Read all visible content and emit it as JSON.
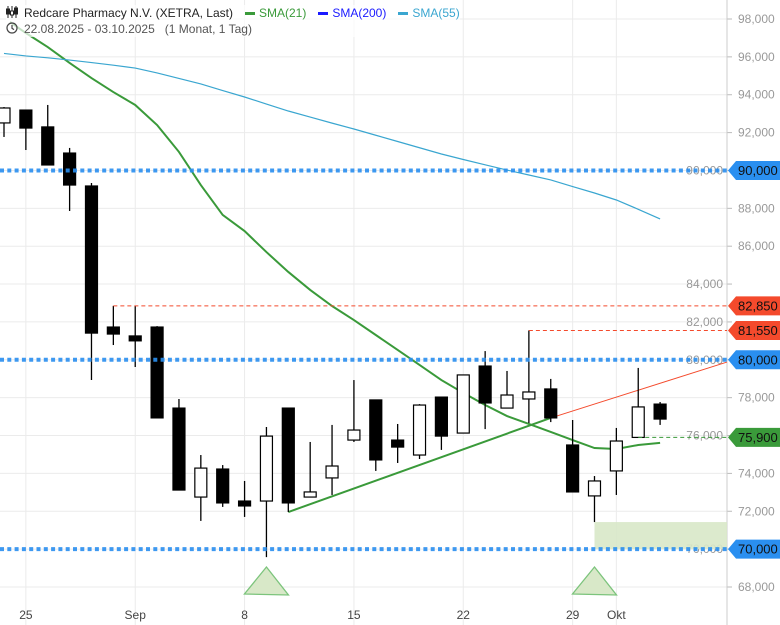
{
  "header": {
    "title": "Redcare Pharmacy N.V. (XETRA, Last)",
    "date_range": "22.08.2025 - 03.10.2025",
    "period": "(1 Monat, 1 Tag)",
    "icons": {
      "chart": "candlestick-icon",
      "time": "clock-icon"
    }
  },
  "chart_data": {
    "type": "candlestick",
    "title": "Redcare Pharmacy N.V. (XETRA, Last)",
    "ylim": [
      67000,
      99000
    ],
    "y_ticks": [
      68000,
      70000,
      72000,
      74000,
      76000,
      78000,
      80000,
      82000,
      84000,
      86000,
      88000,
      90000,
      92000,
      94000,
      96000,
      98000
    ],
    "y_tick_labels": [
      "68,000",
      "70,000",
      "72,000",
      "74,000",
      "76,000",
      "78,000",
      "80,000",
      "82,000",
      "84,000",
      "86,000",
      "88,000",
      "90,000",
      "92,000",
      "94,000",
      "96,000",
      "98,000"
    ],
    "x_labels": [
      {
        "label": "25",
        "date": "2025-08-25"
      },
      {
        "label": "Sep",
        "date": "2025-09-01"
      },
      {
        "label": "8",
        "date": "2025-09-08"
      },
      {
        "label": "15",
        "date": "2025-09-15"
      },
      {
        "label": "22",
        "date": "2025-09-22"
      },
      {
        "label": "29",
        "date": "2025-09-29"
      },
      {
        "label": "Okt",
        "date": "2025-10-01"
      }
    ],
    "grid": true,
    "candles": [
      {
        "date": "2025-08-22",
        "o": 92510,
        "h": 93350,
        "l": 91770,
        "c": 93300
      },
      {
        "date": "2025-08-25",
        "o": 93190,
        "h": 93190,
        "l": 91080,
        "c": 92240
      },
      {
        "date": "2025-08-26",
        "o": 92300,
        "h": 93460,
        "l": 90290,
        "c": 90290
      },
      {
        "date": "2025-08-27",
        "o": 90920,
        "h": 91190,
        "l": 87860,
        "c": 89230
      },
      {
        "date": "2025-08-28",
        "o": 89180,
        "h": 89340,
        "l": 78930,
        "c": 81410
      },
      {
        "date": "2025-08-29",
        "o": 81730,
        "h": 82850,
        "l": 80780,
        "c": 81360
      },
      {
        "date": "2025-09-01",
        "o": 81260,
        "h": 82850,
        "l": 79620,
        "c": 81000
      },
      {
        "date": "2025-09-02",
        "o": 81730,
        "h": 81780,
        "l": 76930,
        "c": 76930
      },
      {
        "date": "2025-09-03",
        "o": 77450,
        "h": 77930,
        "l": 73120,
        "c": 73120
      },
      {
        "date": "2025-09-04",
        "o": 72750,
        "h": 74970,
        "l": 71490,
        "c": 74280
      },
      {
        "date": "2025-09-05",
        "o": 74230,
        "h": 74440,
        "l": 72230,
        "c": 72440
      },
      {
        "date": "2025-09-08",
        "o": 72540,
        "h": 73600,
        "l": 71700,
        "c": 72280
      },
      {
        "date": "2025-09-09",
        "o": 72540,
        "h": 76450,
        "l": 69580,
        "c": 75970
      },
      {
        "date": "2025-09-10",
        "o": 77450,
        "h": 77450,
        "l": 71960,
        "c": 72440
      },
      {
        "date": "2025-09-11",
        "o": 72750,
        "h": 75660,
        "l": 72750,
        "c": 73020
      },
      {
        "date": "2025-09-12",
        "o": 73760,
        "h": 76560,
        "l": 72860,
        "c": 74390
      },
      {
        "date": "2025-09-15",
        "o": 75760,
        "h": 78930,
        "l": 75660,
        "c": 76290
      },
      {
        "date": "2025-09-16",
        "o": 77880,
        "h": 77880,
        "l": 74130,
        "c": 74710
      },
      {
        "date": "2025-09-17",
        "o": 75760,
        "h": 76610,
        "l": 74550,
        "c": 75390
      },
      {
        "date": "2025-09-18",
        "o": 74970,
        "h": 77660,
        "l": 74760,
        "c": 77610
      },
      {
        "date": "2025-09-19",
        "o": 78030,
        "h": 78030,
        "l": 75240,
        "c": 75970
      },
      {
        "date": "2025-09-22",
        "o": 76130,
        "h": 79200,
        "l": 76130,
        "c": 79200
      },
      {
        "date": "2025-09-23",
        "o": 79670,
        "h": 80460,
        "l": 76340,
        "c": 77720
      },
      {
        "date": "2025-09-24",
        "o": 77450,
        "h": 79410,
        "l": 77450,
        "c": 78140
      },
      {
        "date": "2025-09-25",
        "o": 77930,
        "h": 81550,
        "l": 76660,
        "c": 78300
      },
      {
        "date": "2025-09-26",
        "o": 78460,
        "h": 78990,
        "l": 76710,
        "c": 76930
      },
      {
        "date": "2025-09-29",
        "o": 75500,
        "h": 76820,
        "l": 73020,
        "c": 73020
      },
      {
        "date": "2025-09-30",
        "o": 72810,
        "h": 73860,
        "l": 71430,
        "c": 73600
      },
      {
        "date": "2025-10-01",
        "o": 74130,
        "h": 76400,
        "l": 72860,
        "c": 75710
      },
      {
        "date": "2025-10-02",
        "o": 75900,
        "h": 79570,
        "l": 75900,
        "c": 77510
      },
      {
        "date": "2025-10-03",
        "o": 77660,
        "h": 77770,
        "l": 76560,
        "c": 76870
      }
    ],
    "series": [
      {
        "name": "SMA(21)",
        "color": "#3a9a3a",
        "values": [
          null,
          97260,
          96520,
          95680,
          94880,
          94140,
          93460,
          92400,
          90980,
          89230,
          87650,
          86800,
          85690,
          84640,
          83690,
          82840,
          82100,
          81310,
          80520,
          79730,
          78930,
          78250,
          77610,
          77030,
          76610,
          76190,
          75760,
          75340,
          75290,
          75500,
          75610
        ]
      },
      {
        "name": "SMA(200)",
        "color": "#1a1aff",
        "values": []
      },
      {
        "name": "SMA(55)",
        "color": "#3aa6d0",
        "values": [
          96180,
          96050,
          95950,
          95830,
          95700,
          95560,
          95410,
          95150,
          94860,
          94570,
          94220,
          93880,
          93510,
          93140,
          92820,
          92500,
          92190,
          91860,
          91530,
          91200,
          90870,
          90580,
          90300,
          90020,
          89760,
          89500,
          89150,
          88810,
          88440,
          87950,
          87440
        ]
      }
    ],
    "horizontal_lines": [
      {
        "value": 90000,
        "label": "90,000",
        "style": "dotted",
        "color": "#2a8ff0"
      },
      {
        "value": 80000,
        "label": "80,000",
        "style": "dotted",
        "color": "#2a8ff0"
      },
      {
        "value": 70000,
        "label": "70,000",
        "style": "dotted",
        "color": "#2a8ff0"
      },
      {
        "value": 82850,
        "label": "82,850",
        "style": "dashed",
        "color": "#f44a2c",
        "from_date": "2025-08-29"
      },
      {
        "value": 81550,
        "label": "81,550",
        "style": "dashed",
        "color": "#f44a2c",
        "from_date": "2025-09-25"
      },
      {
        "value": 75900,
        "label": "75,900",
        "style": "dashed",
        "color": "#3a9a3a",
        "from_date": "2025-10-02"
      }
    ],
    "trendlines": [
      {
        "color": "#3a9a3a",
        "from": {
          "date": "2025-09-10",
          "value": 71960
        },
        "to": {
          "date": "2025-09-26",
          "value": 76930
        }
      },
      {
        "color": "#f44a2c",
        "from": {
          "date": "2025-09-26",
          "value": 76930
        },
        "to_value_at_edge": 79880
      }
    ],
    "zones": [
      {
        "color": "#d8e8c8",
        "from_date": "2025-09-30",
        "low": 70000,
        "high": 71430
      }
    ],
    "markers": [
      {
        "type": "triangle-up",
        "date": "2025-09-09",
        "color": "#7cc47c"
      },
      {
        "type": "triangle-up",
        "date": "2025-09-30",
        "color": "#7cc47c"
      }
    ]
  }
}
